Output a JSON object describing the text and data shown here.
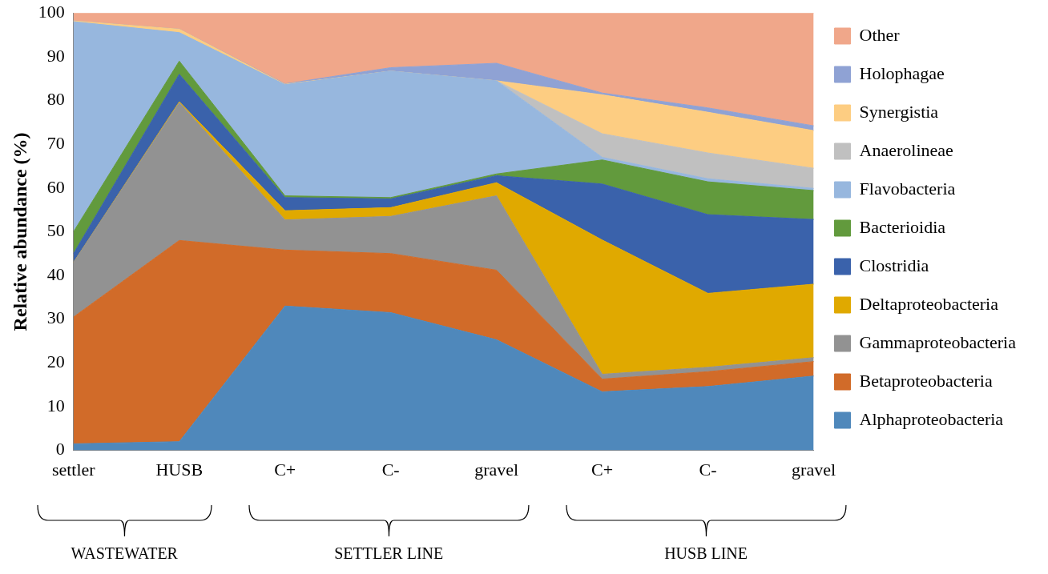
{
  "chart_data": {
    "type": "area",
    "stacked": true,
    "ylabel": "Relative abundance (%)",
    "categories": [
      "settler",
      "HUSB",
      "C+",
      "C-",
      "gravel",
      "C+",
      "C-",
      "gravel"
    ],
    "ylim": [
      0,
      100
    ],
    "yticks": [
      0,
      10,
      20,
      30,
      40,
      50,
      60,
      70,
      80,
      90,
      100
    ],
    "grid": false,
    "legend": "right",
    "marker": "none",
    "annotations": [
      "WASTEWATER",
      "SETTLER LINE",
      "HUSB LINE"
    ],
    "series": [
      {
        "name": "Alphaproteobacteria",
        "color": "#4f88bb",
        "values": [
          1.5,
          2,
          33,
          31.5,
          25.3,
          13.4,
          14.6,
          17.0
        ]
      },
      {
        "name": "Betaproteobacteria",
        "color": "#d16b29",
        "values": [
          29,
          46,
          12.8,
          13.5,
          15.9,
          2.9,
          3.4,
          3.3
        ]
      },
      {
        "name": "Gammaproteobacteria",
        "color": "#929292",
        "values": [
          12.5,
          31.5,
          6.9,
          8.5,
          17,
          1.1,
          1.0,
          0.9
        ]
      },
      {
        "name": "Deltaproteobacteria",
        "color": "#e0a900",
        "values": [
          0,
          0.2,
          2.1,
          2,
          3,
          30.7,
          16.9,
          16.8
        ]
      },
      {
        "name": "Clostridia",
        "color": "#3a62ab",
        "values": [
          2,
          6.3,
          3,
          2,
          1.6,
          12.8,
          18,
          14.8
        ]
      },
      {
        "name": "Bacterioidia",
        "color": "#629a3d",
        "values": [
          5,
          3,
          0.4,
          0.3,
          0.4,
          5.5,
          7.5,
          6.6
        ]
      },
      {
        "name": "Flavobacteria",
        "color": "#97b7de",
        "values": [
          48,
          6.5,
          25.4,
          28.9,
          21.3,
          0.6,
          0.7,
          0.5
        ]
      },
      {
        "name": "Anaerolineae",
        "color": "#c0c0c0",
        "values": [
          0,
          0,
          0,
          0,
          0,
          5.4,
          5.9,
          4.6
        ]
      },
      {
        "name": "Synergistia",
        "color": "#fdcd82",
        "values": [
          0.2,
          0.8,
          0.1,
          0,
          0,
          8.9,
          9.3,
          8.6
        ]
      },
      {
        "name": "Holophagae",
        "color": "#8fa2d4",
        "values": [
          0,
          0,
          0.1,
          0.8,
          4,
          0.4,
          1.0,
          1.1
        ]
      },
      {
        "name": "Other",
        "color": "#f0a78a",
        "values": [
          1.8,
          3.7,
          16.2,
          12.5,
          11.5,
          18.3,
          21.7,
          25.8
        ]
      }
    ]
  }
}
